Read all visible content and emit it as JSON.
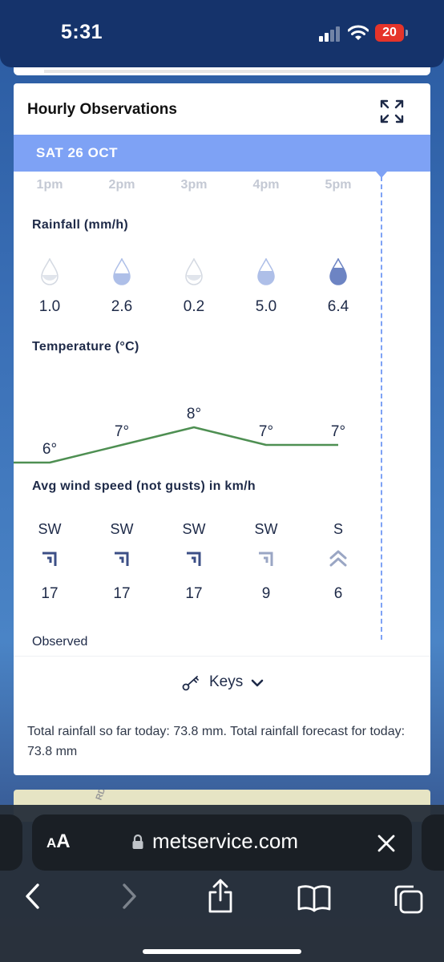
{
  "status_bar": {
    "time": "5:31",
    "battery_level": "20",
    "icons": [
      "cellular-signal-icon",
      "wifi-icon",
      "battery-icon"
    ]
  },
  "card": {
    "title": "Hourly Observations",
    "date": "SAT 26 OCT",
    "hours": [
      "1pm",
      "2pm",
      "3pm",
      "4pm",
      "5pm"
    ],
    "rainfall": {
      "label": "Rainfall (mm/h)",
      "values": [
        "1.0",
        "2.6",
        "0.2",
        "5.0",
        "6.4"
      ],
      "drop_colors": [
        "#e1e5ec",
        "#aebfe8",
        "#e1e5ec",
        "#aebfe8",
        "#6d84c3"
      ]
    },
    "temperature": {
      "label": "Temperature (°C)",
      "values": [
        "6°",
        "7°",
        "8°",
        "7°",
        "7°"
      ],
      "line_color": "#4e8f52"
    },
    "wind": {
      "label": "Avg wind speed (not gusts) in km/h",
      "directions": [
        "SW",
        "SW",
        "SW",
        "SW",
        "S"
      ],
      "speeds": [
        "17",
        "17",
        "17",
        "9",
        "6"
      ],
      "icon_colors": [
        "#3c4f86",
        "#3c4f86",
        "#3c4f86",
        "#9aa6c4",
        "#9aa6c4"
      ]
    },
    "observed_label": "Observed",
    "keys_label": "Keys",
    "total_rainfall_text": "Total rainfall so far today: 73.8 mm. Total rainfall forecast for today: 73.8 mm"
  },
  "map_peek_text": "RD.",
  "safari": {
    "aa_label_small": "A",
    "aa_label_large": "A",
    "url": "metservice.com"
  },
  "colors": {
    "accent_blue": "#7ea2f5",
    "text_dark": "#1e2a48",
    "status_bar_bg": "#15336b"
  }
}
